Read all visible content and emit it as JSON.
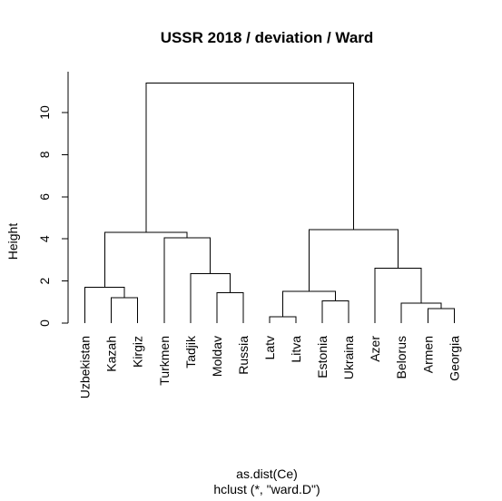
{
  "chart_data": {
    "type": "dendrogram",
    "title": "USSR 2018 / deviation / Ward",
    "ylabel": "Height",
    "xlabel": "as.dist(Ce)",
    "sublabel": "hclust (*, \"ward.D\")",
    "ylim": [
      0,
      11.4
    ],
    "yticks": [
      0,
      2,
      4,
      6,
      8,
      10
    ],
    "leaves": [
      "Uzbekistan",
      "Kazah",
      "Kirgiz",
      "Turkmen",
      "Tadjik",
      "Moldav",
      "Russia",
      "Latv",
      "Litva",
      "Estonia",
      "Ukraina",
      "Azer",
      "Belorus",
      "Armen",
      "Georgia"
    ],
    "merges": [
      {
        "a": "Armen",
        "b": "Georgia",
        "height": 0.7
      },
      {
        "a": "Latv",
        "b": "Litva",
        "height": 0.3
      },
      {
        "a": "Belorus",
        "b": [
          "Armen",
          "Georgia"
        ],
        "height": 0.95
      },
      {
        "a": "Estonia",
        "b": "Ukraina",
        "height": 1.05
      },
      {
        "a": "Kazah",
        "b": "Kirgiz",
        "height": 1.2
      },
      {
        "a": "Moldav",
        "b": "Russia",
        "height": 1.45
      },
      {
        "a": [
          "Latv",
          "Litva"
        ],
        "b": [
          "Estonia",
          "Ukraina"
        ],
        "height": 1.5
      },
      {
        "a": "Uzbekistan",
        "b": [
          "Kazah",
          "Kirgiz"
        ],
        "height": 1.7
      },
      {
        "a": "Tadjik",
        "b": [
          "Moldav",
          "Russia"
        ],
        "height": 2.35
      },
      {
        "a": "Azer",
        "b": [
          "Belorus",
          "Armen",
          "Georgia"
        ],
        "height": 2.6
      },
      {
        "a": "Turkmen",
        "b": [
          "Tadjik",
          "Moldav",
          "Russia"
        ],
        "height": 4.05
      },
      {
        "a": [
          "Uzbekistan",
          "Kazah",
          "Kirgiz"
        ],
        "b": [
          "Turkmen",
          "Tadjik",
          "Moldav",
          "Russia"
        ],
        "height": 4.3
      },
      {
        "a": [
          "Latv",
          "Litva",
          "Estonia",
          "Ukraina"
        ],
        "b": [
          "Azer",
          "Belorus",
          "Armen",
          "Georgia"
        ],
        "height": 4.45
      },
      {
        "a": [
          "Uzbekistan",
          "Kazah",
          "Kirgiz",
          "Turkmen",
          "Tadjik",
          "Moldav",
          "Russia"
        ],
        "b": [
          "Latv",
          "Litva",
          "Estonia",
          "Ukraina",
          "Azer",
          "Belorus",
          "Armen",
          "Georgia"
        ],
        "height": 11.4
      }
    ]
  }
}
